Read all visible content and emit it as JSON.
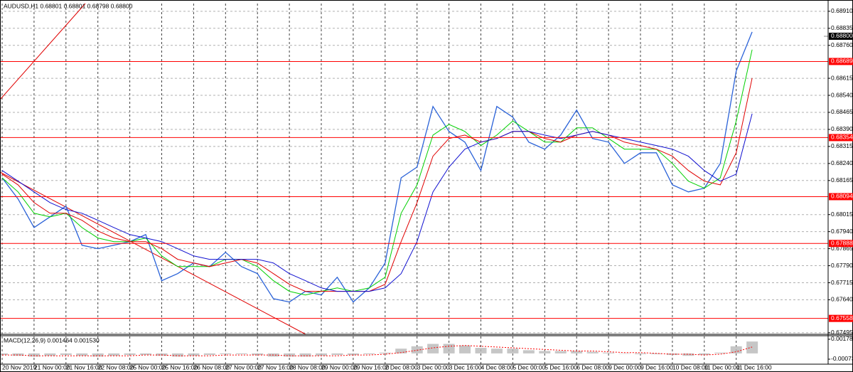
{
  "chart_data": [
    {
      "type": "line",
      "title": "AUDUSD,H1  0.68801 0.68801 0.68798 0.68800",
      "categories": [
        "20 Nov 2019",
        null,
        "21 Nov 00:00",
        null,
        "21 Nov 16:00",
        null,
        "22 Nov 08:00",
        null,
        "25 Nov 00:00",
        null,
        "25 Nov 16:00",
        null,
        "26 Nov 08:00",
        null,
        "27 Nov 00:00",
        null,
        "27 Nov 16:00",
        null,
        "28 Nov 08:00",
        null,
        "29 Nov 00:00",
        null,
        "29 Nov 16:00",
        null,
        "2 Dec 08:00",
        null,
        "3 Dec 00:00",
        null,
        "3 Dec 16:00",
        null,
        "4 Dec 08:00",
        null,
        "5 Dec 00:00",
        null,
        "5 Dec 16:00",
        null,
        "6 Dec 08:00",
        null,
        "9 Dec 00:00",
        null,
        "9 Dec 16:00",
        null,
        "10 Dec 08:00",
        null,
        "11 Dec 00:00",
        null,
        "11 Dec 16:00",
        null
      ],
      "series": [
        {
          "color": "#2a62d8",
          "values": [
            0.68177,
            0.68084,
            0.67958,
            0.68005,
            0.68052,
            0.6788,
            0.67865,
            0.6788,
            0.67896,
            0.67927,
            0.67724,
            0.67755,
            0.67802,
            0.67786,
            0.67849,
            0.67786,
            0.67755,
            0.67645,
            0.6763,
            0.67677,
            0.67661,
            0.67739,
            0.6763,
            0.67692,
            0.67802,
            0.68177,
            0.68224,
            0.68491,
            0.68381,
            0.68334,
            0.68209,
            0.68491,
            0.68444,
            0.68334,
            0.68303,
            0.68365,
            0.68475,
            0.6835,
            0.68334,
            0.6824,
            0.68287,
            0.68287,
            0.68146,
            0.68115,
            0.68131,
            0.6824,
            0.68647,
            0.68819
          ]
        },
        {
          "color": "#00d000",
          "values": [
            0.68177,
            0.68115,
            0.68021,
            0.68005,
            0.68021,
            0.67958,
            0.67912,
            0.67896,
            0.67896,
            0.67912,
            0.67833,
            0.67786,
            0.67786,
            0.67786,
            0.67818,
            0.67818,
            0.67786,
            0.67724,
            0.67677,
            0.67661,
            0.67677,
            0.67692,
            0.67677,
            0.67692,
            0.67739,
            0.68021,
            0.68146,
            0.68365,
            0.68412,
            0.68381,
            0.68319,
            0.68365,
            0.68427,
            0.68381,
            0.68334,
            0.68334,
            0.68397,
            0.68397,
            0.6835,
            0.68303,
            0.68303,
            0.68303,
            0.6824,
            0.68162,
            0.68131,
            0.68177,
            0.68427,
            0.68741
          ]
        },
        {
          "color": "#e00000",
          "values": [
            0.68193,
            0.68146,
            0.68068,
            0.68021,
            0.68021,
            0.6799,
            0.67943,
            0.67912,
            0.67896,
            0.67896,
            0.67865,
            0.67818,
            0.67802,
            0.67786,
            0.67802,
            0.67818,
            0.67802,
            0.67755,
            0.67708,
            0.67677,
            0.67677,
            0.67677,
            0.67677,
            0.67677,
            0.67708,
            0.67896,
            0.68068,
            0.68272,
            0.6835,
            0.68365,
            0.68334,
            0.6835,
            0.68381,
            0.68381,
            0.6835,
            0.68334,
            0.68365,
            0.68381,
            0.68365,
            0.68334,
            0.68319,
            0.68303,
            0.68272,
            0.68209,
            0.68162,
            0.68146,
            0.68287,
            0.68616
          ]
        },
        {
          "color": "#1010d0",
          "values": [
            0.68209,
            0.68162,
            0.68115,
            0.68068,
            0.68037,
            0.68021,
            0.6799,
            0.67958,
            0.67927,
            0.67912,
            0.67896,
            0.67865,
            0.67833,
            0.67818,
            0.67818,
            0.67818,
            0.67818,
            0.67802,
            0.67755,
            0.67724,
            0.67692,
            0.67677,
            0.67677,
            0.67677,
            0.67692,
            0.67755,
            0.67896,
            0.68115,
            0.68224,
            0.68303,
            0.68334,
            0.6835,
            0.68381,
            0.68381,
            0.68365,
            0.6835,
            0.68365,
            0.68381,
            0.68365,
            0.6835,
            0.68334,
            0.68319,
            0.68303,
            0.68272,
            0.68209,
            0.68162,
            0.68193,
            0.68459
          ]
        }
      ],
      "ylim": [
        0.67488,
        0.68944
      ],
      "yticks": [
        {
          "value": 0.6891,
          "label": "0.68910"
        },
        0.68835,
        {
          "value": 0.6876,
          "label": "0.68760"
        },
        0.68615,
        {
          "value": 0.6854,
          "label": "0.68540"
        },
        0.68465,
        {
          "value": 0.6839,
          "label": "0.68390"
        },
        0.68315,
        {
          "value": 0.6824,
          "label": "0.68240"
        },
        0.68165,
        0.68015,
        {
          "value": 0.6794,
          "label": "0.67940"
        },
        0.67865,
        {
          "value": 0.6779,
          "label": "0.67790"
        },
        0.67715,
        {
          "value": 0.6764,
          "label": "0.67640"
        },
        0.67495
      ],
      "grid": true,
      "levels": [
        0.68689,
        0.68354,
        0.68094,
        0.67888,
        0.67558
      ],
      "level_color": "#ff0000",
      "current_price": {
        "value": 0.688,
        "label": "0.68800"
      }
    },
    {
      "type": "bar",
      "title": "MACD(12,26,9) 0.001464 0.001530",
      "color": "#b8b8b8",
      "values": [
        -0.0002,
        -0.0003,
        -0.0004,
        -0.0003,
        -0.0002,
        -0.0003,
        -0.0004,
        -0.0003,
        -0.0002,
        -0.0002,
        -0.0003,
        -0.0004,
        -0.0003,
        -0.0002,
        -0.0001,
        -0.0001,
        -0.0002,
        -0.0004,
        -0.0004,
        -0.0004,
        -0.0003,
        -0.0002,
        -0.0002,
        -0.0001,
        0.0001,
        0.0006,
        0.0009,
        0.0012,
        0.0012,
        0.001,
        0.0007,
        0.0006,
        0.0006,
        0.0004,
        0.0003,
        0.0003,
        0.0003,
        0.0002,
        0.0001,
        0,
        -0.0001,
        -0.0001,
        -0.0002,
        -0.0003,
        -0.0002,
        0.0001,
        0.0009,
        0.0015
      ],
      "signal": {
        "color": "#ff0000",
        "values": [
          -0.0002,
          -0.0002,
          -0.0003,
          -0.0003,
          -0.0003,
          -0.0003,
          -0.0003,
          -0.0003,
          -0.0003,
          -0.0002,
          -0.0002,
          -0.0003,
          -0.0003,
          -0.0003,
          -0.0002,
          -0.0002,
          -0.0002,
          -0.0002,
          -0.0003,
          -0.0003,
          -0.0003,
          -0.0003,
          -0.0002,
          -0.0002,
          -0.0001,
          0.0001,
          0.0004,
          0.0007,
          0.0009,
          0.001,
          0.0009,
          0.0008,
          0.0007,
          0.0006,
          0.0005,
          0.0004,
          0.0003,
          0.0003,
          0.0002,
          0.0001,
          0.0001,
          0,
          -0.0001,
          -0.0001,
          -0.0002,
          -0.0001,
          0.0002,
          0.0008
        ]
      },
      "ylim": [
        -0.00136,
        0.00223
      ],
      "yticks": [
        0.001785,
        -0.00073
      ]
    }
  ]
}
